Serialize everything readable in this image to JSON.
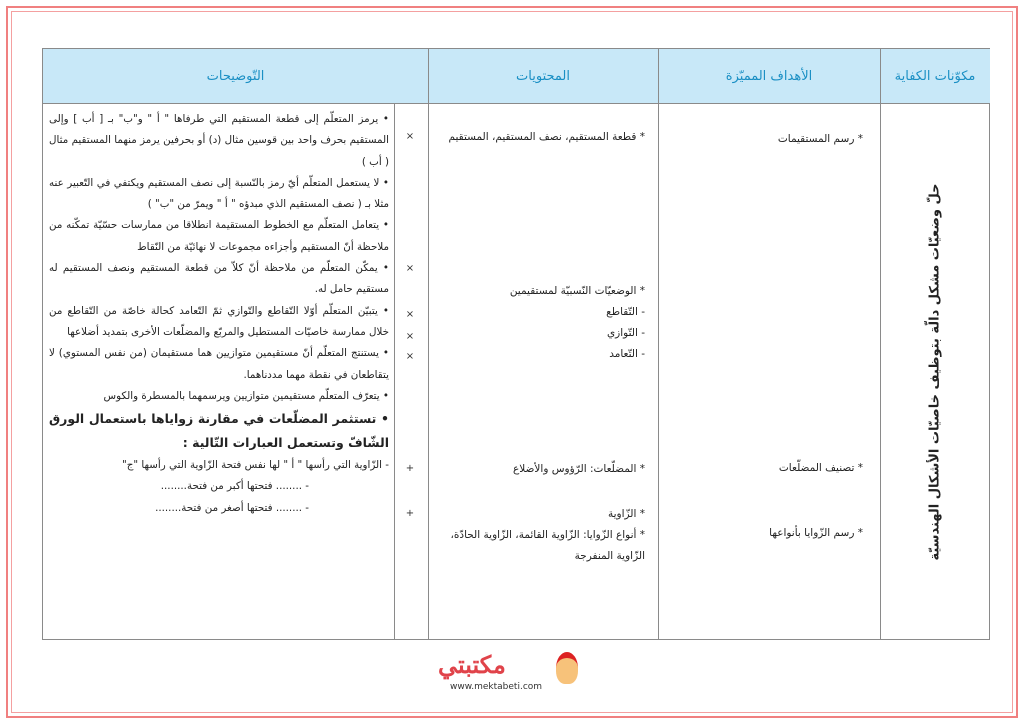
{
  "headers": {
    "competency": "مكوّنات الكفاية",
    "objectives": "الأهداف المميّزة",
    "contents": "المحتويات",
    "explanations": "التّوضيحات"
  },
  "competency_text": "حلّ وضعيّات مشكل دالّة بتوظيف خاصيّات الأشكال الهندسيّة",
  "objectives": [
    "* رسم المستقيمات",
    "* تصنيف المضلّعات",
    "* رسم الزّوايا بأنواعها"
  ],
  "contents": {
    "c1": "* قطعة المستقيم، نصف المستقيم، المستقيم",
    "c2": "* الوضعيّات النّسبيّة لمستقيمين",
    "c2a": "- التّقاطع",
    "c2b": "- التّوازي",
    "c2c": "- التّعامد",
    "c3": "* المضلّعات: الرّؤوس والأضلاع",
    "c4": "* الزّاوية",
    "c5": "* أنواع الزّوايا: الزّاوية القائمة، الزّاوية الحادّة، الزّاوية المنفرجة"
  },
  "explanations": [
    "• يرمز المتعلّم إلى قطعة المستقيم التي طرفاها \" أ \" و\"ب\" بـ [ أب ] وإلى المستقيم بحرف واحد بين قوسين مثال (د) أو بحرفين يرمز منهما المستقيم مثال ( أب )",
    "• لا يستعمل المتعلّم أيّ رمز بالنّسبة إلى نصف المستقيم ويكتفي في التّعبير عنه مثلا بـ ( نصف المستقيم الذي مبدؤه \" أ \" ويمرّ من \"ب\" )",
    "• يتعامل المتعلّم مع الخطوط المستقيمة انطلاقا من ممارسات حسّيّة تمكّنه من ملاحظة أنّ المستقيم وأجزاءه مجموعات لا نهائيّة من النّقاط",
    "• يمكّن المتعلّم من ملاحظة أنّ كلاّ من قطعة المستقيم ونصف المستقيم له مستقيم حامل له.",
    "• يتبيّن المتعلّم أوّلا التّقاطع والتّوازي ثمّ التّعامد كحالة خاصّة من التّقاطع من خلال ممارسة خاصيّات المستطيل والمربّع والمضلّعات الأخرى بتمديد أضلاعها",
    "• يستنتج المتعلّم أنّ مستقيمين متوازيين هما مستقيمان (من نفس المستوي) لا يتقاطعان في نقطة مهما مددناهما.",
    "• يتعرّف المتعلّم مستقيمين متوازيين ويرسمهما بالمسطرة والكوس"
  ],
  "explanation_bold": "• تستثمر المضلّعات في مقارنة زواياها باستعمال الورق الشّافّ وتستعمل العبارات التّالية :",
  "explanation_lines": [
    "- الزّاوية التي رأسها \" أ \" لها نفس فتحة الزّاوية التي رأسها \"ج\"",
    "- ........ فتحتها أكبر من فتحة........",
    "- ........ فتحتها أصغر من فتحة........"
  ],
  "marks": [
    "×",
    "×",
    "×",
    "×",
    "×",
    "+",
    "+"
  ],
  "logo": {
    "text": "مكتبتي",
    "url": "www.mektabeti.com"
  },
  "colors": {
    "header_bg": "#c8e8f8",
    "header_text": "#1a8fc4",
    "frame": "#f08080"
  }
}
